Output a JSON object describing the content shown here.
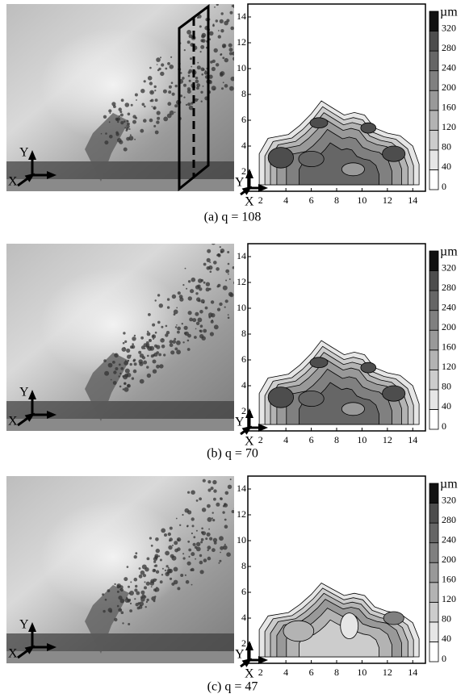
{
  "figures": [
    {
      "caption": "(a) q = 108",
      "photo_axes": {
        "x": "X",
        "y": "Y"
      },
      "plot": {
        "x_label": "X",
        "y_label": "Y",
        "xlim": [
          1,
          15
        ],
        "ylim": [
          0.5,
          15
        ],
        "xticks": [
          2,
          4,
          6,
          8,
          10,
          12,
          14
        ],
        "yticks": [
          2,
          4,
          6,
          8,
          10,
          12,
          14
        ]
      },
      "colorbar": {
        "unit": "µm",
        "lim": [
          0,
          360
        ],
        "ticks": [
          0,
          40,
          80,
          120,
          160,
          200,
          240,
          280,
          320
        ],
        "colors": [
          "#ffffff",
          "#e6e6e6",
          "#cccccc",
          "#b3b3b3",
          "#999999",
          "#808080",
          "#666666",
          "#4d4d4d",
          "#111111"
        ]
      }
    },
    {
      "caption": "(b) q = 70",
      "photo_axes": {
        "x": "X",
        "y": "Y"
      },
      "plot": {
        "x_label": "X",
        "y_label": "Y",
        "xlim": [
          1,
          15
        ],
        "ylim": [
          0.5,
          15
        ],
        "xticks": [
          2,
          4,
          6,
          8,
          10,
          12,
          14
        ],
        "yticks": [
          2,
          4,
          6,
          8,
          10,
          12,
          14
        ]
      },
      "colorbar": {
        "unit": "µm",
        "lim": [
          0,
          360
        ],
        "ticks": [
          0,
          40,
          80,
          120,
          160,
          200,
          240,
          280,
          320
        ],
        "colors": [
          "#ffffff",
          "#e6e6e6",
          "#cccccc",
          "#b3b3b3",
          "#999999",
          "#808080",
          "#666666",
          "#4d4d4d",
          "#111111"
        ]
      }
    },
    {
      "caption": "(c) q = 47",
      "photo_axes": {
        "x": "X",
        "y": "Y"
      },
      "plot": {
        "x_label": "X",
        "y_label": "Y",
        "xlim": [
          1,
          15
        ],
        "ylim": [
          0.5,
          15
        ],
        "xticks": [
          2,
          4,
          6,
          8,
          10,
          12,
          14
        ],
        "yticks": [
          2,
          4,
          6,
          8,
          10,
          12,
          14
        ]
      },
      "colorbar": {
        "unit": "µm",
        "lim": [
          0,
          360
        ],
        "ticks": [
          0,
          40,
          80,
          120,
          160,
          200,
          240,
          280,
          320
        ],
        "colors": [
          "#ffffff",
          "#e6e6e6",
          "#cccccc",
          "#b3b3b3",
          "#999999",
          "#808080",
          "#666666",
          "#4d4d4d",
          "#111111"
        ]
      }
    }
  ]
}
